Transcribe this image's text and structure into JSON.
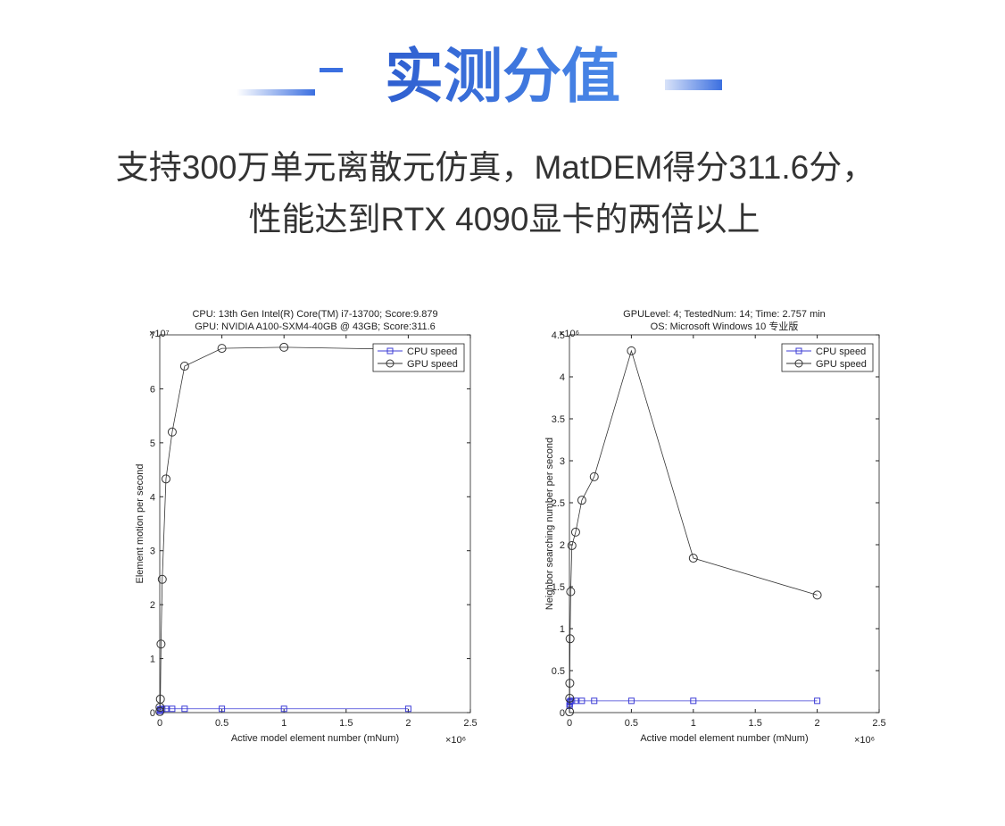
{
  "header": {
    "title": "实测分值",
    "subtitle_lines": [
      "支持300万单元离散元仿真，MatDEM得分311.6分，",
      "性能达到RTX 4090显卡的两倍以上"
    ]
  },
  "chart_data": [
    {
      "type": "line",
      "title_lines": [
        "CPU: 13th Gen Intel(R) Core(TM) i7-13700; Score:9.879",
        "GPU: NVIDIA A100-SXM4-40GB @ 43GB; Score:311.6"
      ],
      "x_label": "Active model element number (mNum)",
      "y_label": "Element motion per second",
      "x_exponent_label": "×10⁶",
      "y_exponent_label": "×10⁷",
      "x": [
        0.001,
        0.002,
        0.005,
        0.01,
        0.02,
        0.05,
        0.1,
        0.2,
        0.5,
        1,
        2
      ],
      "series": [
        {
          "name": "CPU speed",
          "color": "#3c3cd6",
          "marker": "square",
          "values": [
            0.03,
            0.05,
            0.06,
            0.06,
            0.07,
            0.07,
            0.07,
            0.07,
            0.07,
            0.07,
            0.07
          ]
        },
        {
          "name": "GPU speed",
          "color": "#333333",
          "marker": "circle",
          "values": [
            0.02,
            0.1,
            0.25,
            1.27,
            2.47,
            4.33,
            5.2,
            6.42,
            6.75,
            6.77,
            6.73
          ]
        }
      ],
      "xlim": [
        0,
        2.5
      ],
      "xticks": [
        0,
        0.5,
        1,
        1.5,
        2,
        2.5
      ],
      "ylim": [
        0,
        7
      ],
      "yticks": [
        0,
        1,
        2,
        3,
        4,
        5,
        6,
        7
      ],
      "legend": "upper-right",
      "grid": false
    },
    {
      "type": "line",
      "title_lines": [
        "GPULevel: 4; TestedNum: 14; Time: 2.757 min",
        "OS: Microsoft Windows 10 专业版"
      ],
      "x_label": "Active model element number (mNum)",
      "y_label": "Neighbor searching number per second",
      "x_exponent_label": "×10⁶",
      "y_exponent_label": "×10⁶",
      "x": [
        0.001,
        0.002,
        0.003,
        0.005,
        0.01,
        0.02,
        0.05,
        0.1,
        0.2,
        0.5,
        1,
        2
      ],
      "series": [
        {
          "name": "CPU speed",
          "color": "#3c3cd6",
          "marker": "square",
          "values": [
            0.08,
            0.1,
            0.12,
            0.13,
            0.14,
            0.14,
            0.14,
            0.14,
            0.14,
            0.14,
            0.14,
            0.14
          ]
        },
        {
          "name": "GPU speed",
          "color": "#333333",
          "marker": "circle",
          "values": [
            0.01,
            0.17,
            0.35,
            0.88,
            1.44,
            1.99,
            2.15,
            2.53,
            2.81,
            4.31,
            1.84,
            1.4
          ]
        }
      ],
      "xlim": [
        0,
        2.5
      ],
      "xticks": [
        0,
        0.5,
        1,
        1.5,
        2,
        2.5
      ],
      "ylim": [
        0,
        4.5
      ],
      "yticks": [
        0,
        0.5,
        1,
        1.5,
        2,
        2.5,
        3,
        3.5,
        4,
        4.5
      ],
      "legend": "upper-right",
      "grid": false
    }
  ]
}
